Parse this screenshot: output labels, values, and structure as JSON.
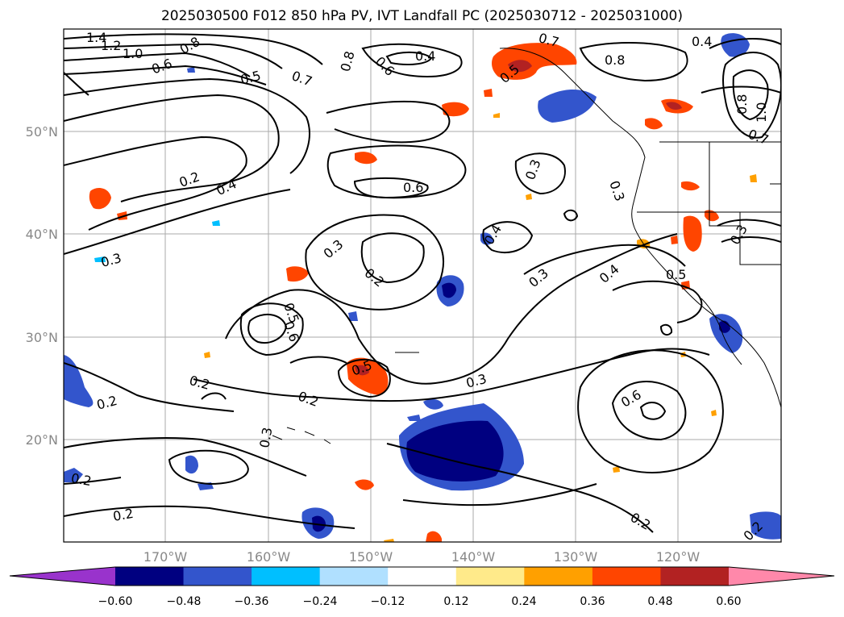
{
  "title": "2025030500 F012 850 hPa PV, IVT Landfall PC (2025030712 - 2025031000)",
  "lat_labels": [
    "50°N",
    "40°N",
    "30°N",
    "20°N"
  ],
  "lon_labels": [
    "170°W",
    "160°W",
    "150°W",
    "140°W",
    "130°W",
    "120°W"
  ],
  "colorbar": {
    "ticks": [
      "−0.60",
      "−0.48",
      "−0.36",
      "−0.24",
      "−0.12",
      "0.12",
      "0.24",
      "0.36",
      "0.48",
      "0.60"
    ],
    "colors": [
      "#9933cc",
      "#000080",
      "#3355cc",
      "#00bfff",
      "#b0e0ff",
      "#ffffff",
      "#ffea8a",
      "#ffa000",
      "#ff4500",
      "#b22222",
      "#ff88aa"
    ]
  },
  "contour_labels": [
    "1.4",
    "1.2",
    "1.0",
    "0.6",
    "0.8",
    "0.5",
    "0.7",
    "0.8",
    "0.6",
    "0.4",
    "0.7",
    "0.8",
    "0.4",
    "0.5",
    "0.8",
    "1.0",
    "0.7",
    "0.2",
    "0.4",
    "0.6",
    "0.3",
    "0.3",
    "0.4",
    "0.3",
    "0.3",
    "0.2",
    "0.4",
    "0.5",
    "0.3",
    "0.5",
    "0.6",
    "0.5",
    "0.2",
    "0.2",
    "0.3",
    "0.6",
    "0.3",
    "0.2",
    "0.2",
    "0.2",
    "0.2",
    "0.2",
    "0.3"
  ]
}
